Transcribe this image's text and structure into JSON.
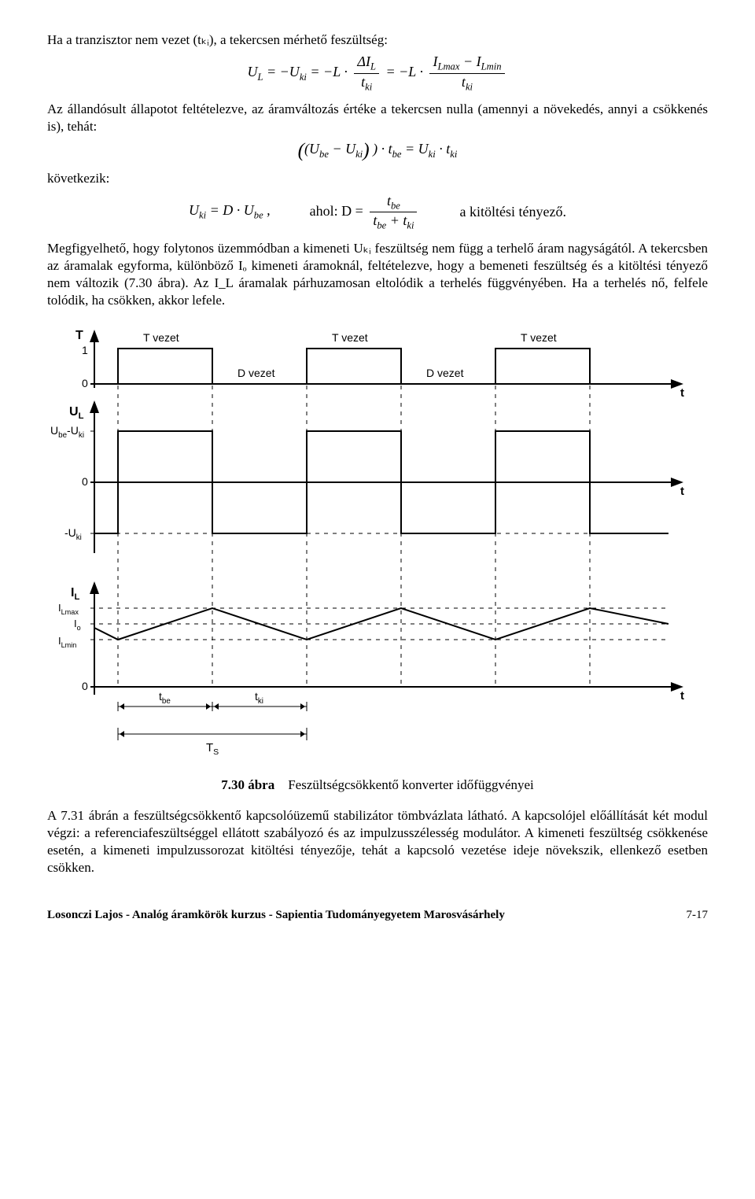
{
  "text": {
    "p1": "Ha a tranzisztor nem vezet (tₖᵢ), a tekercsen mérhető feszültség:",
    "p2": "Az állandósult állapotot feltételezve, az áramváltozás értéke a tekercsen nulla (amennyi a növekedés, annyi a csökkenés is), tehát:",
    "p3": "következik:",
    "p4": "a kitöltési tényező.",
    "p5": "Megfigyelhető, hogy folytonos üzemmódban a kimeneti Uₖᵢ feszültség nem függ a terhelő áram nagyságától. A tekercsben az áramalak egyforma, különböző Iₒ kimeneti áramoknál, feltételezve, hogy a bemeneti feszültség és a kitöltési tényező nem változik (7.30 ábra). Az I_L áramalak párhuzamosan eltolódik a terhelés függvényében. Ha a terhelés nő, felfele tolódik, ha csökken, akkor lefele.",
    "captionBold": "7.30 ábra",
    "captionRest": "Feszültségcsökkentő konverter időfüggvényei",
    "p6": "A 7.31 ábrán a feszültségcsökkentő kapcsolóüzemű stabilizátor tömbvázlata látható. A kapcsolójel előállítását két modul végzi: a referenciafeszültséggel ellátott szabályozó és az impulzusszélesség modulátor. A kimeneti feszültség csökkenése esetén, a kimeneti impulzussorozat kitöltési tényezője, tehát a kapcsoló vezetése ideje növekszik, ellenkező esetben csökken.",
    "footerLeft": "Losonczi Lajos  -  Analóg áramkörök kurzus - Sapientia Tudományegyetem Marosvásárhely",
    "footerRight": "7-17"
  },
  "eq": {
    "e1_lhs": "U",
    "e1_L": "L",
    "e1_eq": " = −U",
    "e1_ki": "ki",
    "e1_eqL": " = −L · ",
    "e1_dIL": "ΔI",
    "e1_tki": "t",
    "e1_eqL2": " = −L · ",
    "e1_ILmax": "I",
    "e1_Lmax": "Lmax",
    "e1_minus": " − I",
    "e1_Lmin": "Lmin",
    "e2": "(U",
    "e2_be": "be",
    "e2_mid": " − U",
    "e2_ki": "ki",
    "e2_par": ") · t",
    "e2_be2": "be",
    "e2_eq": " = U",
    "e2_ki2": "ki",
    "e2_dot": " · t",
    "e2_ki3": "ki",
    "e3_lhs": "U",
    "e3_ki": "ki",
    "e3_eq": " = D · U",
    "e3_be": "be",
    "e3_comma": ",",
    "e3_ahol": "ahol:  D = ",
    "e3_num": "t",
    "e3_num_s": "be",
    "e3_den": "t",
    "e3_den_be": "be",
    "e3_den_p": " + t",
    "e3_den_ki": "ki"
  },
  "chart": {
    "colors": {
      "line": "#000000",
      "dash": "#000000",
      "bg": "#ffffff"
    },
    "stroke_width": 2,
    "dash_pattern": "5,6",
    "font_size_axis": 14,
    "font_size_label": 15,
    "edges": [
      90,
      210,
      330,
      450,
      570,
      690,
      790
    ],
    "labels": {
      "T_axis": "T",
      "one": "1",
      "zero": "0",
      "T_vezet": "T vezet",
      "D_vezet": "D vezet",
      "t_axis": "t",
      "UL": "U",
      "UL_sub": "L",
      "UbeUki": "U",
      "UbeUki_sub": "be",
      "UbeUki_rest": "-U",
      "UbeUki_sub2": "ki",
      "mUki": "-U",
      "mUki_sub": "ki",
      "IL": "I",
      "IL_sub": "L",
      "ILmax": "I",
      "ILmax_sub": "Lmax",
      "Io": "I",
      "Io_sub": "o",
      "ILmin": "I",
      "ILmin_sub": "Lmin",
      "tbe": "t",
      "tbe_sub": "be",
      "tki": "t",
      "tki_sub": "ki",
      "TS": "T",
      "TS_sub": "S"
    }
  }
}
